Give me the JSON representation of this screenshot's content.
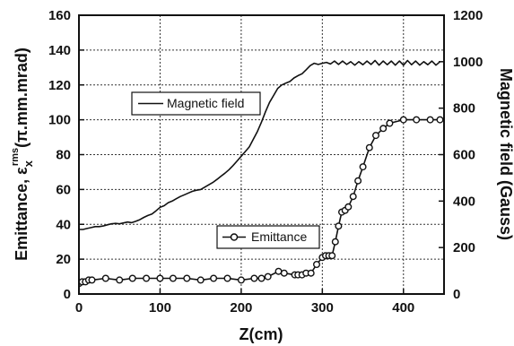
{
  "chart_data": {
    "type": "line",
    "title": "",
    "xlabel": "Z(cm)",
    "ylabel_left": "Emittance, ε",
    "ylabel_left_sub": "x",
    "ylabel_left_sup": "rms",
    "ylabel_left_units": "(π.mm.mrad)",
    "ylabel_right": "Magnetic field (Gauss)",
    "xlim": [
      0,
      450
    ],
    "ylim_left": [
      0,
      160
    ],
    "ylim_right": [
      0,
      1200
    ],
    "x_ticks": [
      0,
      100,
      200,
      300,
      400
    ],
    "y_ticks_left": [
      0,
      20,
      40,
      60,
      80,
      100,
      120,
      140,
      160
    ],
    "y_ticks_right": [
      0,
      200,
      400,
      600,
      800,
      1000,
      1200
    ],
    "grid": true,
    "series": [
      {
        "name": "Magnetic field",
        "axis": "right",
        "marker": "none",
        "x": [
          0,
          5,
          10,
          15,
          20,
          25,
          30,
          35,
          40,
          45,
          50,
          55,
          60,
          65,
          70,
          75,
          80,
          85,
          90,
          95,
          100,
          105,
          110,
          115,
          120,
          125,
          130,
          135,
          140,
          145,
          150,
          155,
          160,
          165,
          170,
          175,
          180,
          185,
          190,
          195,
          200,
          205,
          210,
          215,
          220,
          225,
          230,
          235,
          240,
          245,
          250,
          255,
          260,
          265,
          270,
          275,
          280,
          285,
          290,
          295,
          300,
          305,
          310,
          315,
          320,
          325,
          330,
          335,
          340,
          345,
          350,
          355,
          360,
          365,
          370,
          375,
          380,
          385,
          390,
          395,
          400,
          405,
          410,
          415,
          420,
          425,
          430,
          435,
          440,
          445
        ],
        "y": [
          278,
          278,
          282,
          286,
          290,
          290,
          293,
          298,
          302,
          304,
          302,
          306,
          310,
          307,
          313,
          320,
          330,
          338,
          344,
          358,
          373,
          380,
          393,
          400,
          410,
          420,
          427,
          435,
          442,
          447,
          450,
          460,
          470,
          480,
          493,
          507,
          520,
          535,
          553,
          573,
          593,
          613,
          633,
          667,
          700,
          740,
          785,
          825,
          855,
          885,
          900,
          908,
          915,
          930,
          940,
          948,
          965,
          983,
          993,
          988,
          993,
          997,
          990,
          1003,
          988,
          1003,
          988,
          1000,
          985,
          1000,
          987,
          1003,
          988,
          1005,
          985,
          1003,
          987,
          1003,
          985,
          1003,
          985,
          1005,
          987,
          1003,
          985,
          1000,
          987,
          1003,
          985,
          1000
        ]
      },
      {
        "name": "Emittance",
        "axis": "left",
        "marker": "circle",
        "x": [
          0,
          4,
          8,
          12,
          16,
          33,
          50,
          66,
          83,
          100,
          116,
          133,
          150,
          166,
          183,
          200,
          216,
          225,
          233,
          246,
          253,
          266,
          270,
          275,
          280,
          286,
          293,
          300,
          304,
          308,
          312,
          316,
          320,
          324,
          328,
          332,
          338,
          344,
          350,
          358,
          366,
          375,
          383,
          400,
          416,
          433,
          445
        ],
        "y": [
          6,
          7,
          7,
          8,
          8,
          9,
          8,
          9,
          9,
          9,
          9,
          9,
          8,
          9,
          9,
          8,
          9,
          9,
          10,
          13,
          12,
          11,
          11,
          11,
          12,
          12,
          17,
          21,
          22,
          22,
          22,
          30,
          39,
          47,
          48,
          50,
          56,
          65,
          73,
          84,
          91,
          95,
          98,
          100,
          100,
          100,
          100
        ]
      }
    ],
    "legend": [
      {
        "label": "Magnetic field",
        "marker": "line"
      },
      {
        "label": "Emittance",
        "marker": "line-circle"
      }
    ]
  }
}
